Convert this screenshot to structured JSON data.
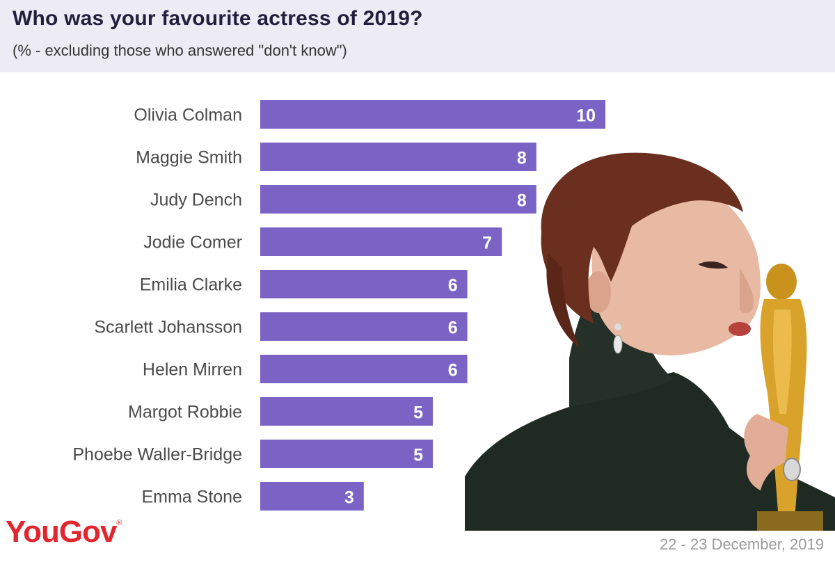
{
  "header": {
    "title": "Who was your favourite actress of 2019?",
    "subtitle": "(% - excluding those who answered \"don't know\")"
  },
  "chart_data": {
    "type": "bar",
    "orientation": "horizontal",
    "title": "Who was your favourite actress of 2019?",
    "subtitle": "(% - excluding those who answered \"don't know\")",
    "categories": [
      "Olivia Colman",
      "Maggie Smith",
      "Judy Dench",
      "Jodie Comer",
      "Emilia Clarke",
      "Scarlett Johansson",
      "Helen Mirren",
      "Margot Robbie",
      "Phoebe Waller-Bridge",
      "Emma Stone"
    ],
    "values": [
      10,
      8,
      8,
      7,
      6,
      6,
      6,
      5,
      5,
      3
    ],
    "bar_color": "#7b63c6",
    "value_label_color": "#ffffff",
    "grid": false,
    "legend": false
  },
  "footer": {
    "logo": "YouGov",
    "logo_mark": "®",
    "logo_color": "#e3262e",
    "date": "22 - 23 December, 2019"
  },
  "photo": {
    "subject": "woman with short auburn hair in dark green high-neck top kissing a golden award statuette"
  }
}
